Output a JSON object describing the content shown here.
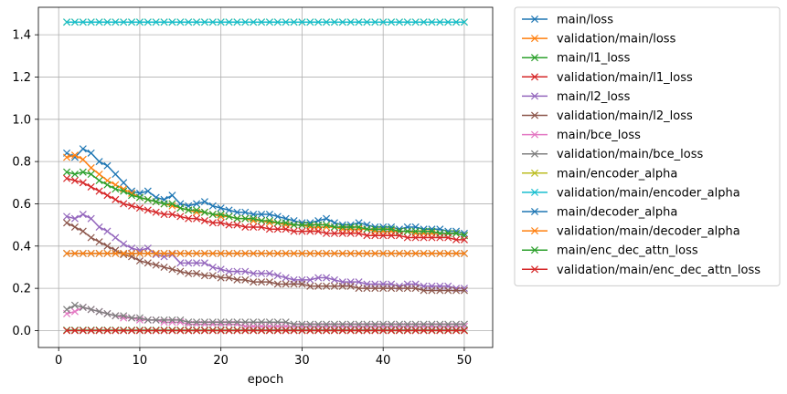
{
  "chart_data": {
    "type": "line",
    "title": "",
    "xlabel": "epoch",
    "ylabel": "",
    "xlim": [
      -2.5,
      53.5
    ],
    "ylim": [
      -0.08,
      1.53
    ],
    "xticks": [
      0,
      10,
      20,
      30,
      40,
      50
    ],
    "yticks": [
      0.0,
      0.2,
      0.4,
      0.6,
      0.8,
      1.0,
      1.2,
      1.4
    ],
    "grid": true,
    "legend": "outside-right",
    "marker": "x",
    "x": {
      "start": 1,
      "end": 50,
      "step": 1
    },
    "series": [
      {
        "name": "main/loss",
        "color": "#1f77b4",
        "values": [
          0.84,
          0.82,
          0.86,
          0.84,
          0.8,
          0.78,
          0.74,
          0.7,
          0.66,
          0.65,
          0.66,
          0.63,
          0.62,
          0.64,
          0.6,
          0.59,
          0.6,
          0.61,
          0.59,
          0.58,
          0.57,
          0.56,
          0.56,
          0.55,
          0.55,
          0.55,
          0.54,
          0.53,
          0.52,
          0.51,
          0.51,
          0.52,
          0.53,
          0.51,
          0.5,
          0.5,
          0.51,
          0.5,
          0.49,
          0.49,
          0.49,
          0.48,
          0.49,
          0.49,
          0.48,
          0.48,
          0.48,
          0.47,
          0.47,
          0.46
        ]
      },
      {
        "name": "validation/main/loss",
        "color": "#ff7f0e",
        "values": [
          0.82,
          0.83,
          0.81,
          0.77,
          0.74,
          0.71,
          0.69,
          0.67,
          0.65,
          0.63,
          0.62,
          0.61,
          0.6,
          0.59,
          0.58,
          0.57,
          0.56,
          0.56,
          0.55,
          0.54,
          0.54,
          0.53,
          0.53,
          0.52,
          0.52,
          0.51,
          0.51,
          0.5,
          0.5,
          0.5,
          0.49,
          0.49,
          0.49,
          0.49,
          0.48,
          0.48,
          0.48,
          0.48,
          0.47,
          0.47,
          0.47,
          0.47,
          0.47,
          0.46,
          0.46,
          0.46,
          0.46,
          0.46,
          0.46,
          0.45
        ]
      },
      {
        "name": "main/l1_loss",
        "color": "#2ca02c",
        "values": [
          0.75,
          0.74,
          0.75,
          0.74,
          0.71,
          0.69,
          0.67,
          0.66,
          0.64,
          0.63,
          0.62,
          0.61,
          0.6,
          0.6,
          0.58,
          0.57,
          0.57,
          0.56,
          0.55,
          0.55,
          0.54,
          0.53,
          0.53,
          0.53,
          0.52,
          0.52,
          0.51,
          0.51,
          0.5,
          0.5,
          0.5,
          0.5,
          0.5,
          0.49,
          0.49,
          0.49,
          0.49,
          0.48,
          0.48,
          0.48,
          0.48,
          0.47,
          0.47,
          0.47,
          0.47,
          0.47,
          0.46,
          0.46,
          0.46,
          0.45
        ]
      },
      {
        "name": "validation/main/l1_loss",
        "color": "#d62728",
        "values": [
          0.72,
          0.71,
          0.7,
          0.68,
          0.66,
          0.64,
          0.62,
          0.6,
          0.59,
          0.58,
          0.57,
          0.56,
          0.55,
          0.55,
          0.54,
          0.53,
          0.53,
          0.52,
          0.51,
          0.51,
          0.5,
          0.5,
          0.49,
          0.49,
          0.49,
          0.48,
          0.48,
          0.48,
          0.47,
          0.47,
          0.47,
          0.47,
          0.46,
          0.46,
          0.46,
          0.46,
          0.46,
          0.45,
          0.45,
          0.45,
          0.45,
          0.45,
          0.44,
          0.44,
          0.44,
          0.44,
          0.44,
          0.44,
          0.43,
          0.43
        ]
      },
      {
        "name": "main/l2_loss",
        "color": "#9467bd",
        "values": [
          0.54,
          0.53,
          0.55,
          0.53,
          0.49,
          0.47,
          0.44,
          0.41,
          0.39,
          0.38,
          0.39,
          0.36,
          0.35,
          0.36,
          0.32,
          0.32,
          0.32,
          0.32,
          0.3,
          0.29,
          0.28,
          0.28,
          0.28,
          0.27,
          0.27,
          0.27,
          0.26,
          0.25,
          0.24,
          0.24,
          0.24,
          0.25,
          0.25,
          0.24,
          0.23,
          0.23,
          0.23,
          0.22,
          0.22,
          0.22,
          0.22,
          0.21,
          0.22,
          0.22,
          0.21,
          0.21,
          0.21,
          0.21,
          0.2,
          0.2
        ]
      },
      {
        "name": "validation/main/l2_loss",
        "color": "#8c564b",
        "values": [
          0.51,
          0.49,
          0.47,
          0.44,
          0.42,
          0.4,
          0.38,
          0.36,
          0.35,
          0.33,
          0.32,
          0.31,
          0.3,
          0.29,
          0.28,
          0.27,
          0.27,
          0.26,
          0.26,
          0.25,
          0.25,
          0.24,
          0.24,
          0.23,
          0.23,
          0.23,
          0.22,
          0.22,
          0.22,
          0.22,
          0.21,
          0.21,
          0.21,
          0.21,
          0.21,
          0.21,
          0.2,
          0.2,
          0.2,
          0.2,
          0.2,
          0.2,
          0.2,
          0.2,
          0.19,
          0.19,
          0.19,
          0.19,
          0.19,
          0.19
        ]
      },
      {
        "name": "main/bce_loss",
        "color": "#e377c2",
        "values": [
          0.08,
          0.09,
          0.11,
          0.1,
          0.09,
          0.08,
          0.07,
          0.06,
          0.06,
          0.05,
          0.05,
          0.05,
          0.04,
          0.04,
          0.04,
          0.03,
          0.03,
          0.03,
          0.03,
          0.03,
          0.03,
          0.03,
          0.02,
          0.02,
          0.02,
          0.02,
          0.02,
          0.02,
          0.02,
          0.02,
          0.02,
          0.02,
          0.02,
          0.02,
          0.02,
          0.02,
          0.02,
          0.02,
          0.02,
          0.02,
          0.02,
          0.02,
          0.02,
          0.02,
          0.02,
          0.02,
          0.02,
          0.02,
          0.02,
          0.02
        ]
      },
      {
        "name": "validation/main/bce_loss",
        "color": "#7f7f7f",
        "values": [
          0.1,
          0.12,
          0.11,
          0.1,
          0.09,
          0.08,
          0.07,
          0.07,
          0.06,
          0.06,
          0.05,
          0.05,
          0.05,
          0.05,
          0.05,
          0.04,
          0.04,
          0.04,
          0.04,
          0.04,
          0.04,
          0.04,
          0.04,
          0.04,
          0.04,
          0.04,
          0.04,
          0.04,
          0.03,
          0.03,
          0.03,
          0.03,
          0.03,
          0.03,
          0.03,
          0.03,
          0.03,
          0.03,
          0.03,
          0.03,
          0.03,
          0.03,
          0.03,
          0.03,
          0.03,
          0.03,
          0.03,
          0.03,
          0.03,
          0.03
        ]
      },
      {
        "name": "main/encoder_alpha",
        "color": "#bcbd22",
        "values": [
          1.46,
          1.46,
          1.46,
          1.46,
          1.46,
          1.46,
          1.46,
          1.46,
          1.46,
          1.46,
          1.46,
          1.46,
          1.46,
          1.46,
          1.46,
          1.46,
          1.46,
          1.46,
          1.46,
          1.46,
          1.46,
          1.46,
          1.46,
          1.46,
          1.46,
          1.46,
          1.46,
          1.46,
          1.46,
          1.46,
          1.46,
          1.46,
          1.46,
          1.46,
          1.46,
          1.46,
          1.46,
          1.46,
          1.46,
          1.46,
          1.46,
          1.46,
          1.46,
          1.46,
          1.46,
          1.46,
          1.46,
          1.46,
          1.46,
          1.46
        ]
      },
      {
        "name": "validation/main/encoder_alpha",
        "color": "#17becf",
        "values": [
          1.46,
          1.46,
          1.46,
          1.46,
          1.46,
          1.46,
          1.46,
          1.46,
          1.46,
          1.46,
          1.46,
          1.46,
          1.46,
          1.46,
          1.46,
          1.46,
          1.46,
          1.46,
          1.46,
          1.46,
          1.46,
          1.46,
          1.46,
          1.46,
          1.46,
          1.46,
          1.46,
          1.46,
          1.46,
          1.46,
          1.46,
          1.46,
          1.46,
          1.46,
          1.46,
          1.46,
          1.46,
          1.46,
          1.46,
          1.46,
          1.46,
          1.46,
          1.46,
          1.46,
          1.46,
          1.46,
          1.46,
          1.46,
          1.46,
          1.46
        ]
      },
      {
        "name": "main/decoder_alpha",
        "color": "#1f77b4",
        "values": [
          0.365,
          0.365,
          0.365,
          0.365,
          0.365,
          0.365,
          0.365,
          0.365,
          0.365,
          0.365,
          0.365,
          0.365,
          0.365,
          0.365,
          0.365,
          0.365,
          0.365,
          0.365,
          0.365,
          0.365,
          0.365,
          0.365,
          0.365,
          0.365,
          0.365,
          0.365,
          0.365,
          0.365,
          0.365,
          0.365,
          0.365,
          0.365,
          0.365,
          0.365,
          0.365,
          0.365,
          0.365,
          0.365,
          0.365,
          0.365,
          0.365,
          0.365,
          0.365,
          0.365,
          0.365,
          0.365,
          0.365,
          0.365,
          0.365,
          0.365
        ]
      },
      {
        "name": "validation/main/decoder_alpha",
        "color": "#ff7f0e",
        "values": [
          0.365,
          0.365,
          0.365,
          0.365,
          0.365,
          0.365,
          0.365,
          0.365,
          0.365,
          0.365,
          0.365,
          0.365,
          0.365,
          0.365,
          0.365,
          0.365,
          0.365,
          0.365,
          0.365,
          0.365,
          0.365,
          0.365,
          0.365,
          0.365,
          0.365,
          0.365,
          0.365,
          0.365,
          0.365,
          0.365,
          0.365,
          0.365,
          0.365,
          0.365,
          0.365,
          0.365,
          0.365,
          0.365,
          0.365,
          0.365,
          0.365,
          0.365,
          0.365,
          0.365,
          0.365,
          0.365,
          0.365,
          0.365,
          0.365,
          0.365
        ]
      },
      {
        "name": "main/enc_dec_attn_loss",
        "color": "#2ca02c",
        "values": [
          0.002,
          0.002,
          0.002,
          0.002,
          0.002,
          0.002,
          0.002,
          0.002,
          0.002,
          0.002,
          0.002,
          0.002,
          0.002,
          0.002,
          0.002,
          0.002,
          0.002,
          0.002,
          0.002,
          0.002,
          0.002,
          0.002,
          0.002,
          0.002,
          0.002,
          0.002,
          0.002,
          0.002,
          0.002,
          0.002,
          0.002,
          0.002,
          0.002,
          0.002,
          0.002,
          0.002,
          0.002,
          0.002,
          0.002,
          0.002,
          0.002,
          0.002,
          0.002,
          0.002,
          0.002,
          0.002,
          0.002,
          0.002,
          0.002,
          0.002
        ]
      },
      {
        "name": "validation/main/enc_dec_attn_loss",
        "color": "#d62728",
        "values": [
          0.0,
          0.0,
          0.0,
          0.0,
          0.0,
          0.0,
          0.0,
          0.0,
          0.0,
          0.0,
          0.0,
          0.0,
          0.0,
          0.0,
          0.0,
          0.0,
          0.0,
          0.0,
          0.0,
          0.0,
          0.0,
          0.0,
          0.0,
          0.0,
          0.0,
          0.0,
          0.0,
          0.0,
          0.0,
          0.0,
          0.0,
          0.0,
          0.0,
          0.0,
          0.0,
          0.0,
          0.0,
          0.0,
          0.0,
          0.0,
          0.0,
          0.0,
          0.0,
          0.0,
          0.0,
          0.0,
          0.0,
          0.0,
          0.0,
          0.0
        ]
      }
    ]
  }
}
